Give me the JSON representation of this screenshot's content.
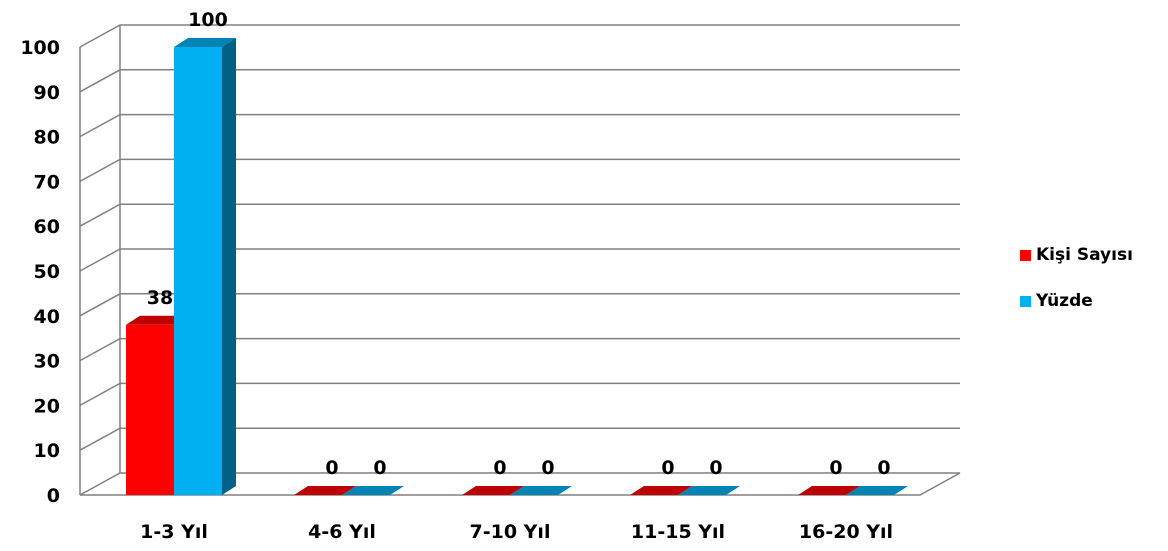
{
  "chart_data": {
    "type": "bar",
    "categories": [
      "1-3 Yıl",
      "4-6 Yıl",
      "7-10 Yıl",
      "11-15 Yıl",
      "16-20 Yıl"
    ],
    "series": [
      {
        "name": "Kişi Sayısı",
        "values": [
          38,
          0,
          0,
          0,
          0
        ],
        "color": "#ff0000"
      },
      {
        "name": "Yüzde",
        "values": [
          100,
          0,
          0,
          0,
          0
        ],
        "color": "#00b0f0"
      }
    ],
    "yticks": [
      "0",
      "10",
      "20",
      "30",
      "40",
      "50",
      "60",
      "70",
      "80",
      "90",
      "100"
    ],
    "ylim": [
      0,
      100
    ],
    "grid": true,
    "legend_position": "right",
    "style": "3d-clustered-column"
  }
}
